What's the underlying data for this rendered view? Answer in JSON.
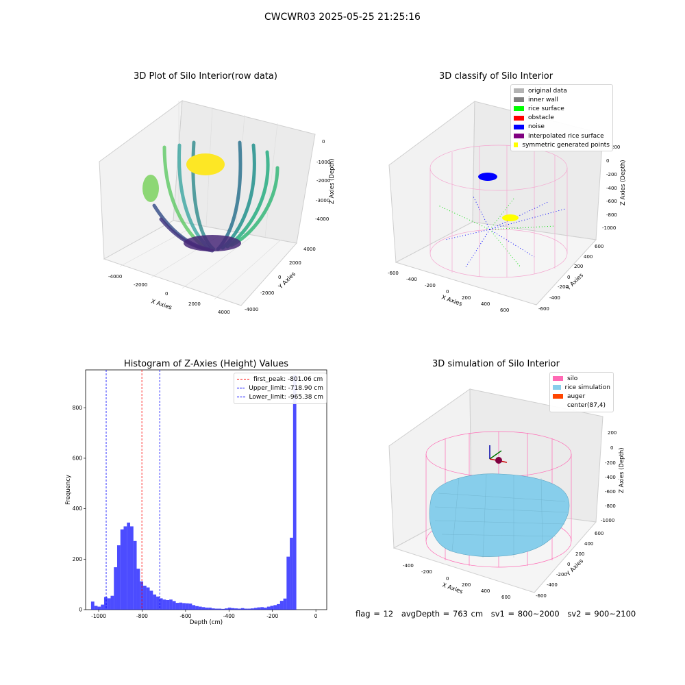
{
  "suptitle": "CWCWR03 2025-05-25 21:25:16",
  "panels": {
    "raw": {
      "title": "3D Plot of Silo Interior(row data)",
      "xlabel": "X Axies",
      "ylabel": "Y Axies",
      "zlabel": "Z Axies (Depth)",
      "xticks": [
        "-4000",
        "-2000",
        "0",
        "2000",
        "4000"
      ],
      "yticks": [
        "-4000",
        "-2000",
        "0",
        "2000",
        "4000"
      ],
      "zticks": [
        "0",
        "-1000",
        "-2000",
        "-3000",
        "-4000"
      ]
    },
    "classify": {
      "title": "3D classify of Silo Interior",
      "xlabel": "X Axies",
      "ylabel": "Y Axies",
      "zlabel": "Z Axies (Depth)",
      "xticks": [
        "-600",
        "-400",
        "-200",
        "0",
        "200",
        "400",
        "600"
      ],
      "yticks": [
        "-600",
        "-400",
        "-200",
        "0",
        "200",
        "400",
        "600"
      ],
      "zticks": [
        "200",
        "0",
        "-200",
        "-400",
        "-600",
        "-800",
        "-1000"
      ],
      "legend": [
        {
          "label": "original data",
          "color": "#b3b3b3"
        },
        {
          "label": "inner wall",
          "color": "#808080"
        },
        {
          "label": "rice surface",
          "color": "#00ff00"
        },
        {
          "label": "obstacle",
          "color": "#ff0000"
        },
        {
          "label": "noise",
          "color": "#0000ff"
        },
        {
          "label": "interpolated rice surface",
          "color": "#800080"
        },
        {
          "label": "symmetric generated points",
          "color": "#ffff00"
        }
      ]
    },
    "simulation": {
      "title": "3D simulation of Silo Interior",
      "xlabel": "X Axies",
      "ylabel": "Y Axies",
      "zlabel": "Z Axies (Depth)",
      "xticks": [
        "-400",
        "-200",
        "0",
        "200",
        "400",
        "600"
      ],
      "yticks": [
        "-600",
        "-400",
        "-200",
        "0",
        "200",
        "400",
        "600"
      ],
      "zticks": [
        "200",
        "0",
        "-200",
        "-400",
        "-600",
        "-800",
        "-1000"
      ],
      "legend": [
        {
          "label": "silo",
          "color": "#ff69b4"
        },
        {
          "label": "rice simulation",
          "color": "#87ceeb"
        },
        {
          "label": "auger",
          "color": "#ff4500"
        },
        {
          "label": "center(87,4)",
          "color": ""
        }
      ]
    }
  },
  "status": {
    "flag": "flag = 12",
    "avg": "avgDepth = 763 cm",
    "sv1": "sv1 = 800~2000",
    "sv2": "sv2 = 900~2100"
  },
  "chart_data": [
    {
      "type": "bar",
      "title": "Histogram of Z-Axies (Height) Values",
      "xlabel": "Depth (cm)",
      "ylabel": "Frequency",
      "bar_color": "#0000ff",
      "bin_width": 15,
      "xlim": [
        -1060,
        50
      ],
      "ylim": [
        0,
        950
      ],
      "xticks": [
        -1000,
        -800,
        -600,
        -400,
        -200,
        0
      ],
      "yticks": [
        0,
        200,
        400,
        600,
        800
      ],
      "bins_start": [
        -1035,
        -1020,
        -1005,
        -990,
        -975,
        -960,
        -945,
        -930,
        -915,
        -900,
        -885,
        -870,
        -855,
        -840,
        -825,
        -810,
        -795,
        -780,
        -765,
        -750,
        -735,
        -720,
        -705,
        -690,
        -675,
        -660,
        -645,
        -630,
        -615,
        -600,
        -585,
        -570,
        -555,
        -540,
        -525,
        -510,
        -495,
        -480,
        -465,
        -450,
        -435,
        -420,
        -405,
        -390,
        -375,
        -360,
        -345,
        -330,
        -315,
        -300,
        -285,
        -270,
        -255,
        -240,
        -225,
        -210,
        -195,
        -180,
        -165,
        -150,
        -135,
        -120,
        -105,
        -90,
        -75,
        -60,
        -45,
        -30,
        -15
      ],
      "values": [
        32,
        15,
        12,
        20,
        50,
        45,
        55,
        168,
        255,
        318,
        330,
        345,
        330,
        272,
        162,
        112,
        95,
        88,
        75,
        60,
        52,
        45,
        40,
        38,
        40,
        34,
        27,
        28,
        26,
        25,
        24,
        18,
        14,
        12,
        10,
        8,
        8,
        5,
        4,
        4,
        3,
        5,
        8,
        6,
        5,
        4,
        6,
        4,
        4,
        5,
        7,
        9,
        10,
        8,
        12,
        15,
        18,
        22,
        35,
        44,
        210,
        285,
        930,
        0,
        0,
        0,
        0,
        0,
        0
      ],
      "lines": [
        {
          "label": "first_peak: -801.06 cm",
          "x": -801.06,
          "color": "#ff0000"
        },
        {
          "label": "Upper_limit: -718.90 cm",
          "x": -718.9,
          "color": "#0000ff"
        },
        {
          "label": "Lower_limit: -965.38 cm",
          "x": -965.38,
          "color": "#0000ff"
        }
      ],
      "legend_position": "top-right"
    }
  ]
}
